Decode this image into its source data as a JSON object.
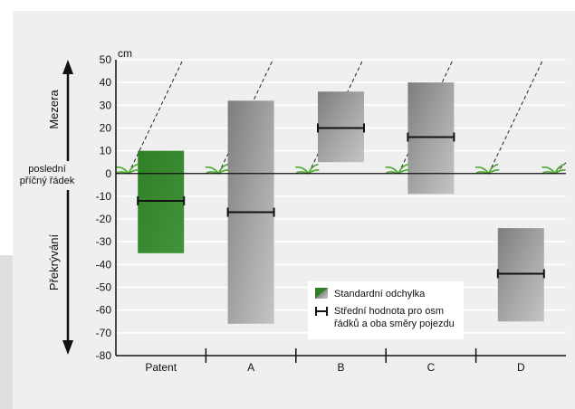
{
  "chart_data": {
    "type": "bar",
    "unit_label": "cm",
    "ylim": [
      -80,
      50
    ],
    "y_ticks": [
      50,
      40,
      30,
      20,
      10,
      0,
      -10,
      -20,
      -30,
      -40,
      -50,
      -60,
      -70,
      -80
    ],
    "categories": [
      "Patent",
      "A",
      "B",
      "C",
      "D"
    ],
    "series": [
      {
        "name": "Standardní odchylka",
        "ranges": [
          [
            -35,
            10
          ],
          [
            -66,
            32
          ],
          [
            5,
            36
          ],
          [
            -9,
            40
          ],
          [
            -65,
            -24
          ]
        ]
      },
      {
        "name": "Střední hodnota pro osm řádků a oba směry pojezdu",
        "values": [
          -12,
          -17,
          20,
          16,
          -44
        ]
      }
    ],
    "bar_colors": [
      "#3b8a2e",
      "#9a9a9a",
      "#9a9a9a",
      "#9a9a9a",
      "#9a9a9a"
    ],
    "axis_annotations": {
      "upper": "Mezera",
      "lower": "Překrývání",
      "zero_line_line1": "poslední",
      "zero_line_line2": "příčný řádek"
    },
    "legend": {
      "position": "bottom-right",
      "line1": "Standardní odchylka",
      "line2a": "Střední hodnota pro osm",
      "line2b": "řádků a oba směry pojezdu"
    },
    "grid": true
  }
}
